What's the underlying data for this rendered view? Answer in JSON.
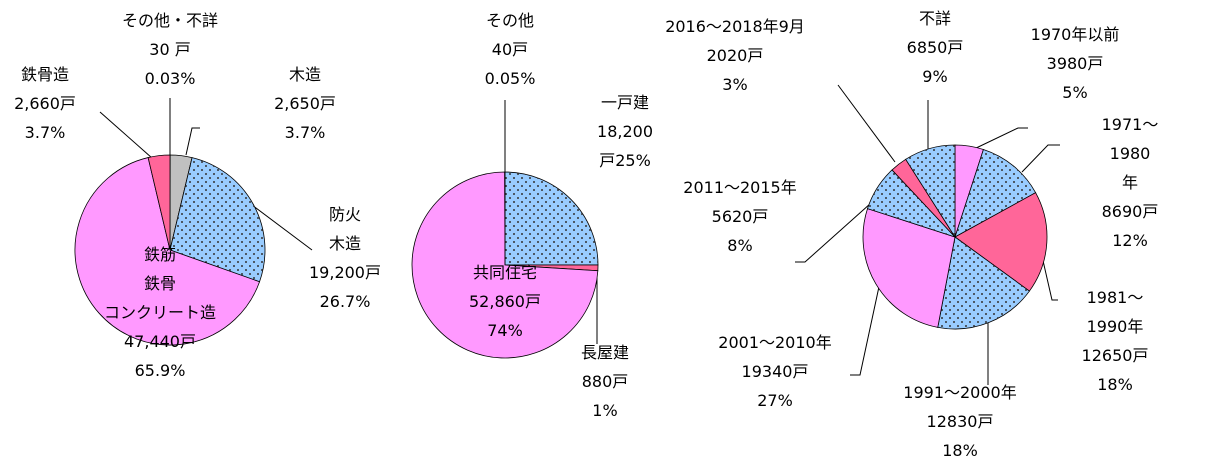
{
  "chart_data": [
    {
      "type": "pie",
      "categories": [
        "その他・不詳",
        "木造",
        "防火\n木造",
        "鉄筋\n鉄骨\nコンクリート造",
        "鉄骨造"
      ],
      "count_labels": [
        "30 戸",
        "2,650戸",
        "19,200戸",
        "47,440戸",
        "2,660戸"
      ],
      "values": [
        0.03,
        3.7,
        26.7,
        65.9,
        3.7
      ],
      "value_labels": [
        "0.03%",
        "3.7%",
        "26.7%",
        "65.9%",
        "3.7%"
      ],
      "colors": [
        "#c0c0c0",
        "#c0c0c0",
        "#99ccff",
        "#ff99ff",
        "#ff6699"
      ],
      "patterned": [
        false,
        false,
        true,
        false,
        false
      ]
    },
    {
      "type": "pie",
      "categories": [
        "一戸建",
        "長屋建",
        "共同住宅",
        "その他"
      ],
      "count_labels": [
        "18,200",
        "880戸",
        "52,860戸",
        "40戸"
      ],
      "values": [
        25,
        1,
        74,
        0.05
      ],
      "value_labels": [
        "戸25%",
        "1%",
        "74%",
        "0.05%"
      ],
      "colors": [
        "#99ccff",
        "#ff6699",
        "#ff99ff",
        "#c0c0c0"
      ],
      "patterned": [
        true,
        false,
        false,
        false
      ]
    },
    {
      "type": "pie",
      "categories": [
        "1970年以前",
        "1971～1980\n年",
        "1981～1990年",
        "1991～2000年",
        "2001～2010年",
        "2011～2015年",
        "2016～2018年9月",
        "不詳"
      ],
      "count_labels": [
        "3980戸",
        "8690戸",
        "12650戸",
        "12830戸",
        "19340戸",
        "5620戸",
        "2020戸",
        "6850戸"
      ],
      "values": [
        5,
        12,
        18,
        18,
        27,
        8,
        3,
        9
      ],
      "value_labels": [
        "5%",
        "12%",
        "18%",
        "18%",
        "27%",
        "8%",
        "3%",
        "9%"
      ],
      "colors": [
        "#ff99ff",
        "#99ccff",
        "#ff6699",
        "#99ccff",
        "#ff99ff",
        "#99ccff",
        "#ff6699",
        "#99ccff"
      ],
      "patterned": [
        false,
        true,
        false,
        true,
        false,
        true,
        false,
        true
      ]
    }
  ]
}
